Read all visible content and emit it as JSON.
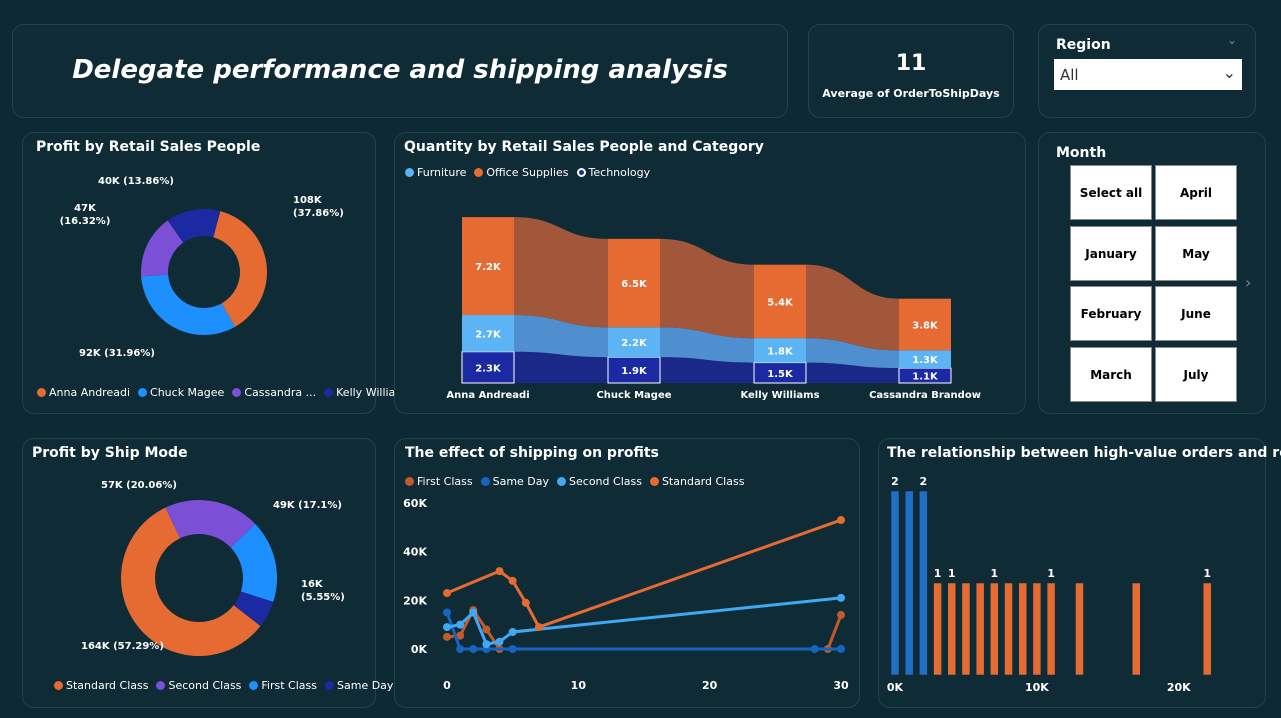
{
  "header": {
    "title": "Delegate performance and shipping analysis"
  },
  "kpi": {
    "value": "11",
    "label": "Average of OrderToShipDays"
  },
  "region_slicer": {
    "title": "Region",
    "selected": "All"
  },
  "month_slicer": {
    "title": "Month",
    "options": [
      "Select all",
      "April",
      "January",
      "May",
      "February",
      "June",
      "March",
      "July"
    ]
  },
  "colors": {
    "orange": "#e56b33",
    "blue": "#1d8fff",
    "purple": "#7b4fd6",
    "navy": "#1b2aa3",
    "lightblue": "#5cb4f5",
    "darkblue": "#1565c0",
    "brown": "#c25a2a"
  },
  "chart_data": [
    {
      "id": "profit_by_sales_people",
      "type": "pie",
      "title": "Profit by Retail Sales People",
      "labels": [
        "Anna Andreadi",
        "Chuck Magee",
        "Cassandra ...",
        "Kelly Williams"
      ],
      "slice_labels": [
        "108K\n(37.86%)",
        "92K (31.96%)",
        "47K\n(16.32%)",
        "40K (13.86%)"
      ],
      "values": [
        108,
        92,
        47,
        40
      ],
      "colors": [
        "#e56b33",
        "#1d8fff",
        "#7b4fd6",
        "#1b2aa3"
      ],
      "legend": [
        "Anna Andreadi",
        "Chuck Magee",
        "Cassandra ...",
        "Kelly Williams"
      ]
    },
    {
      "id": "quantity_by_sales_people_category",
      "type": "bar",
      "title": "Quantity by Retail Sales People and Category",
      "categories": [
        "Anna Andreadi",
        "Chuck Magee",
        "Kelly Williams",
        "Cassandra Brandow"
      ],
      "series": [
        {
          "name": "Technology",
          "values": [
            2.3,
            1.9,
            1.5,
            1.1
          ],
          "labels": [
            "2.3K",
            "1.9K",
            "1.5K",
            "1.1K"
          ],
          "color": "#1b2aa3"
        },
        {
          "name": "Furniture",
          "values": [
            2.7,
            2.2,
            1.8,
            1.3
          ],
          "labels": [
            "2.7K",
            "2.2K",
            "1.8K",
            "1.3K"
          ],
          "color": "#5cb4f5"
        },
        {
          "name": "Office Supplies",
          "values": [
            7.2,
            6.5,
            5.4,
            3.8
          ],
          "labels": [
            "7.2K",
            "6.5K",
            "5.4K",
            "3.8K"
          ],
          "color": "#e56b33"
        }
      ],
      "legend": [
        "Furniture",
        "Office Supplies",
        "Technology"
      ]
    },
    {
      "id": "profit_by_ship_mode",
      "type": "pie",
      "title": "Profit by Ship Mode",
      "labels": [
        "Standard Class",
        "Second Class",
        "First Class",
        "Same Day"
      ],
      "slice_labels": [
        "164K (57.29%)",
        "57K (20.06%)",
        "49K (17.1%)",
        "16K\n(5.55%)"
      ],
      "values": [
        164,
        57,
        49,
        16
      ],
      "colors": [
        "#e56b33",
        "#7b4fd6",
        "#1d8fff",
        "#1b2aa3"
      ],
      "legend": [
        "Standard Class",
        "Second Class",
        "First Class",
        "Same Day"
      ]
    },
    {
      "id": "effect_of_shipping",
      "type": "line",
      "title": "The effect of shipping on profits",
      "legend": [
        "First Class",
        "Same Day",
        "Second Class",
        "Standard Class"
      ],
      "xticks": [
        "0",
        "10",
        "20",
        "30"
      ],
      "yticks": [
        "0K",
        "20K",
        "40K",
        "60K"
      ],
      "xlim": [
        0,
        30
      ],
      "ylim": [
        0,
        60000
      ],
      "series": [
        {
          "name": "First Class",
          "color": "#c25a2a",
          "points": [
            [
              0,
              5000
            ],
            [
              1,
              5500
            ],
            [
              2,
              16000
            ],
            [
              3,
              8000
            ],
            [
              4,
              0
            ],
            [
              29,
              0
            ],
            [
              30,
              14000
            ]
          ]
        },
        {
          "name": "Same Day",
          "color": "#1565c0",
          "points": [
            [
              0,
              15000
            ],
            [
              1,
              0
            ],
            [
              2,
              0
            ],
            [
              3,
              0
            ],
            [
              5,
              0
            ],
            [
              28,
              0
            ],
            [
              30,
              0
            ]
          ]
        },
        {
          "name": "Second Class",
          "color": "#3fa9f5",
          "points": [
            [
              0,
              9000
            ],
            [
              1,
              10000
            ],
            [
              2,
              15000
            ],
            [
              3,
              2000
            ],
            [
              4,
              3000
            ],
            [
              5,
              7000
            ],
            [
              30,
              21000
            ]
          ]
        },
        {
          "name": "Standard Class",
          "color": "#e56b33",
          "points": [
            [
              0,
              23000
            ],
            [
              4,
              32000
            ],
            [
              5,
              28000
            ],
            [
              6,
              19000
            ],
            [
              7,
              9000
            ],
            [
              30,
              53000
            ]
          ]
        }
      ]
    },
    {
      "id": "high_value_orders_returns",
      "type": "bar",
      "title": "The relationship between high-value orders and returns",
      "xticks": [
        "0K",
        "10K",
        "20K"
      ],
      "xlim": [
        0,
        25000
      ],
      "ylim": [
        0,
        2
      ],
      "bars": [
        {
          "x": 0,
          "value": 2,
          "label": "2",
          "color": "#1f6fc4"
        },
        {
          "x": 1000,
          "value": 2,
          "label": "",
          "color": "#1f6fc4"
        },
        {
          "x": 2000,
          "value": 2,
          "label": "2",
          "color": "#1f6fc4"
        },
        {
          "x": 3000,
          "value": 1,
          "label": "1",
          "color": "#e56b33"
        },
        {
          "x": 4000,
          "value": 1,
          "label": "1",
          "color": "#e56b33"
        },
        {
          "x": 5000,
          "value": 1,
          "label": "",
          "color": "#e56b33"
        },
        {
          "x": 6000,
          "value": 1,
          "label": "",
          "color": "#e56b33"
        },
        {
          "x": 7000,
          "value": 1,
          "label": "1",
          "color": "#e56b33"
        },
        {
          "x": 8000,
          "value": 1,
          "label": "",
          "color": "#e56b33"
        },
        {
          "x": 9000,
          "value": 1,
          "label": "",
          "color": "#e56b33"
        },
        {
          "x": 10000,
          "value": 1,
          "label": "",
          "color": "#e56b33"
        },
        {
          "x": 11000,
          "value": 1,
          "label": "1",
          "color": "#e56b33"
        },
        {
          "x": 13000,
          "value": 1,
          "label": "",
          "color": "#e56b33"
        },
        {
          "x": 17000,
          "value": 1,
          "label": "",
          "color": "#e56b33"
        },
        {
          "x": 22000,
          "value": 1,
          "label": "1",
          "color": "#e56b33"
        }
      ]
    }
  ]
}
